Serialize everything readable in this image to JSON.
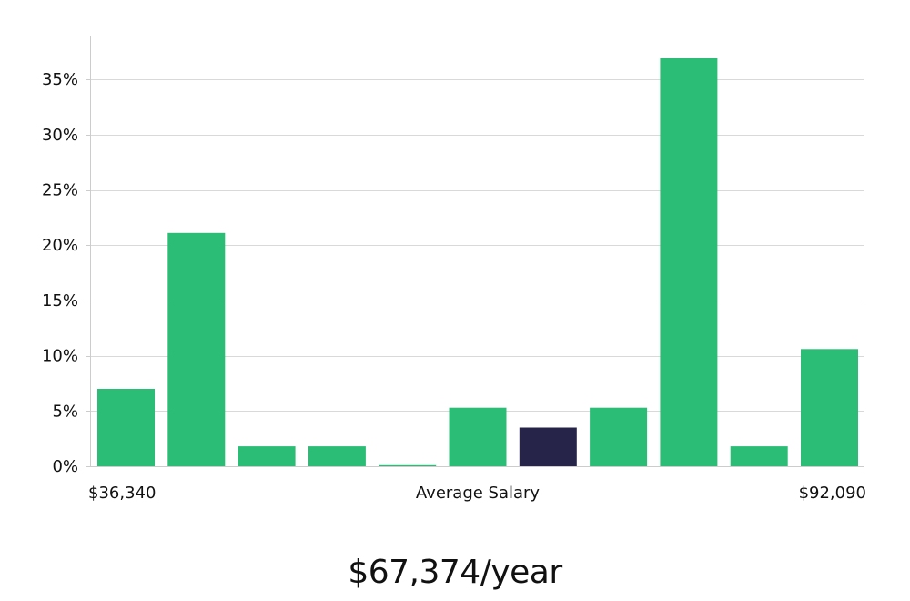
{
  "chart_data": {
    "type": "bar",
    "categories": [
      "1",
      "2",
      "3",
      "4",
      "5",
      "6",
      "7",
      "8",
      "9",
      "10",
      "11"
    ],
    "values": [
      7.0,
      21.1,
      1.8,
      1.8,
      0.1,
      5.3,
      3.5,
      5.3,
      36.9,
      1.8,
      10.6
    ],
    "highlight_index": 6,
    "ylim": [
      0,
      38.5
    ],
    "yticks": [
      0,
      5,
      10,
      15,
      20,
      25,
      30,
      35
    ],
    "ytick_suffix": "%",
    "xlabel_left": "$36,340",
    "xlabel_center": "Average Salary",
    "xlabel_right": "$92,090",
    "grid": true,
    "colors": {
      "bar": "#2bbd76",
      "highlight": "#27244a",
      "grid": "#d9d9d9",
      "axis": "#cccccc"
    }
  },
  "summary": {
    "salary": "$67,374/year"
  }
}
